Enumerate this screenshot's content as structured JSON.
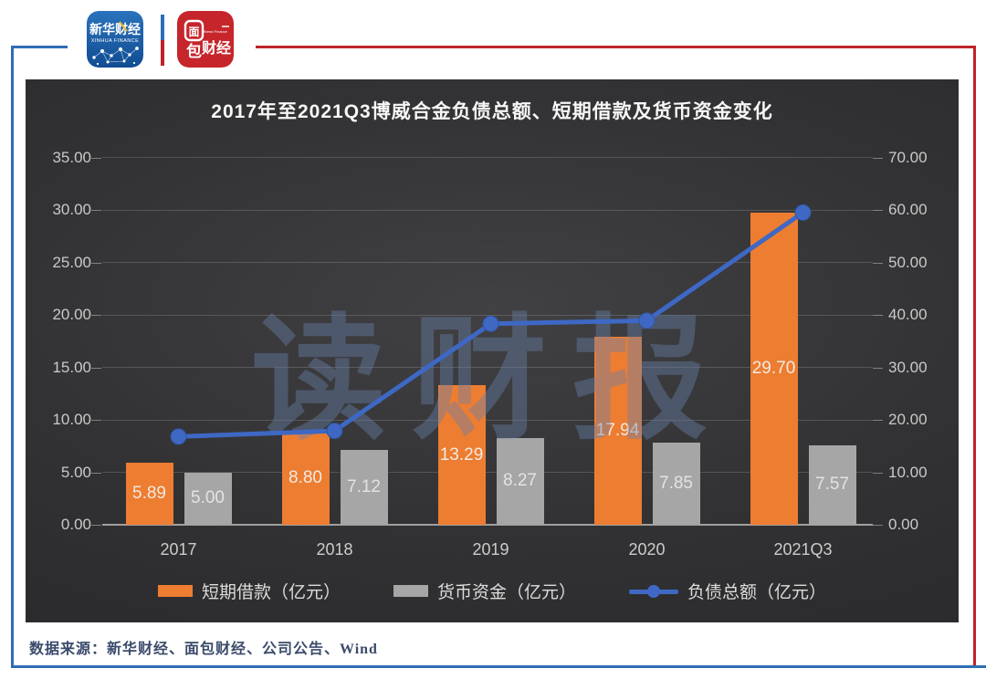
{
  "header": {
    "xinhua_logo": {
      "title": "新华财经",
      "subtitle": "XINHUA FINANCE"
    },
    "bread_logo": {
      "char_top": "面",
      "char_bottom": "包",
      "chars_right": "财经",
      "subtitle": "Bread Finance"
    }
  },
  "chart_data": {
    "type": "combo",
    "title": "2017年至2021Q3博威合金负债总额、短期借款及货币资金变化",
    "categories": [
      "2017",
      "2018",
      "2019",
      "2020",
      "2021Q3"
    ],
    "series": [
      {
        "name": "短期借款（亿元）",
        "type": "bar",
        "axis": "left",
        "color": "#ED7D31",
        "label_color": "#f2eae3",
        "values": [
          5.89,
          8.8,
          13.29,
          17.94,
          29.7
        ],
        "labels": [
          "5.89",
          "8.80",
          "13.29",
          "17.94",
          "29.70"
        ]
      },
      {
        "name": "货币资金（亿元）",
        "type": "bar",
        "axis": "left",
        "color": "#A6A6A6",
        "label_color": "#e3e3e3",
        "values": [
          5.0,
          7.12,
          8.27,
          7.85,
          7.57
        ],
        "labels": [
          "5.00",
          "7.12",
          "8.27",
          "7.85",
          "7.57"
        ]
      },
      {
        "name": "负债总额（亿元）",
        "type": "line",
        "axis": "right",
        "color": "#3E68C4",
        "values": [
          16.8,
          17.9,
          38.3,
          38.9,
          59.5
        ],
        "labels": []
      }
    ],
    "left_axis": {
      "min": 0,
      "max": 35,
      "step": 5,
      "tick_labels": [
        "35.00",
        "30.00",
        "25.00",
        "20.00",
        "15.00",
        "10.00",
        "5.00",
        "0.00"
      ]
    },
    "right_axis": {
      "min": 0,
      "max": 70,
      "step": 10,
      "tick_labels": [
        "70.00",
        "60.00",
        "50.00",
        "40.00",
        "30.00",
        "20.00",
        "10.00",
        "0.00"
      ]
    },
    "grid": true,
    "legend_position": "bottom",
    "watermark": "读财报",
    "background": "dark-gradient"
  },
  "footer": {
    "source": "数据来源：新华财经、面包财经、公司公告、Wind"
  }
}
